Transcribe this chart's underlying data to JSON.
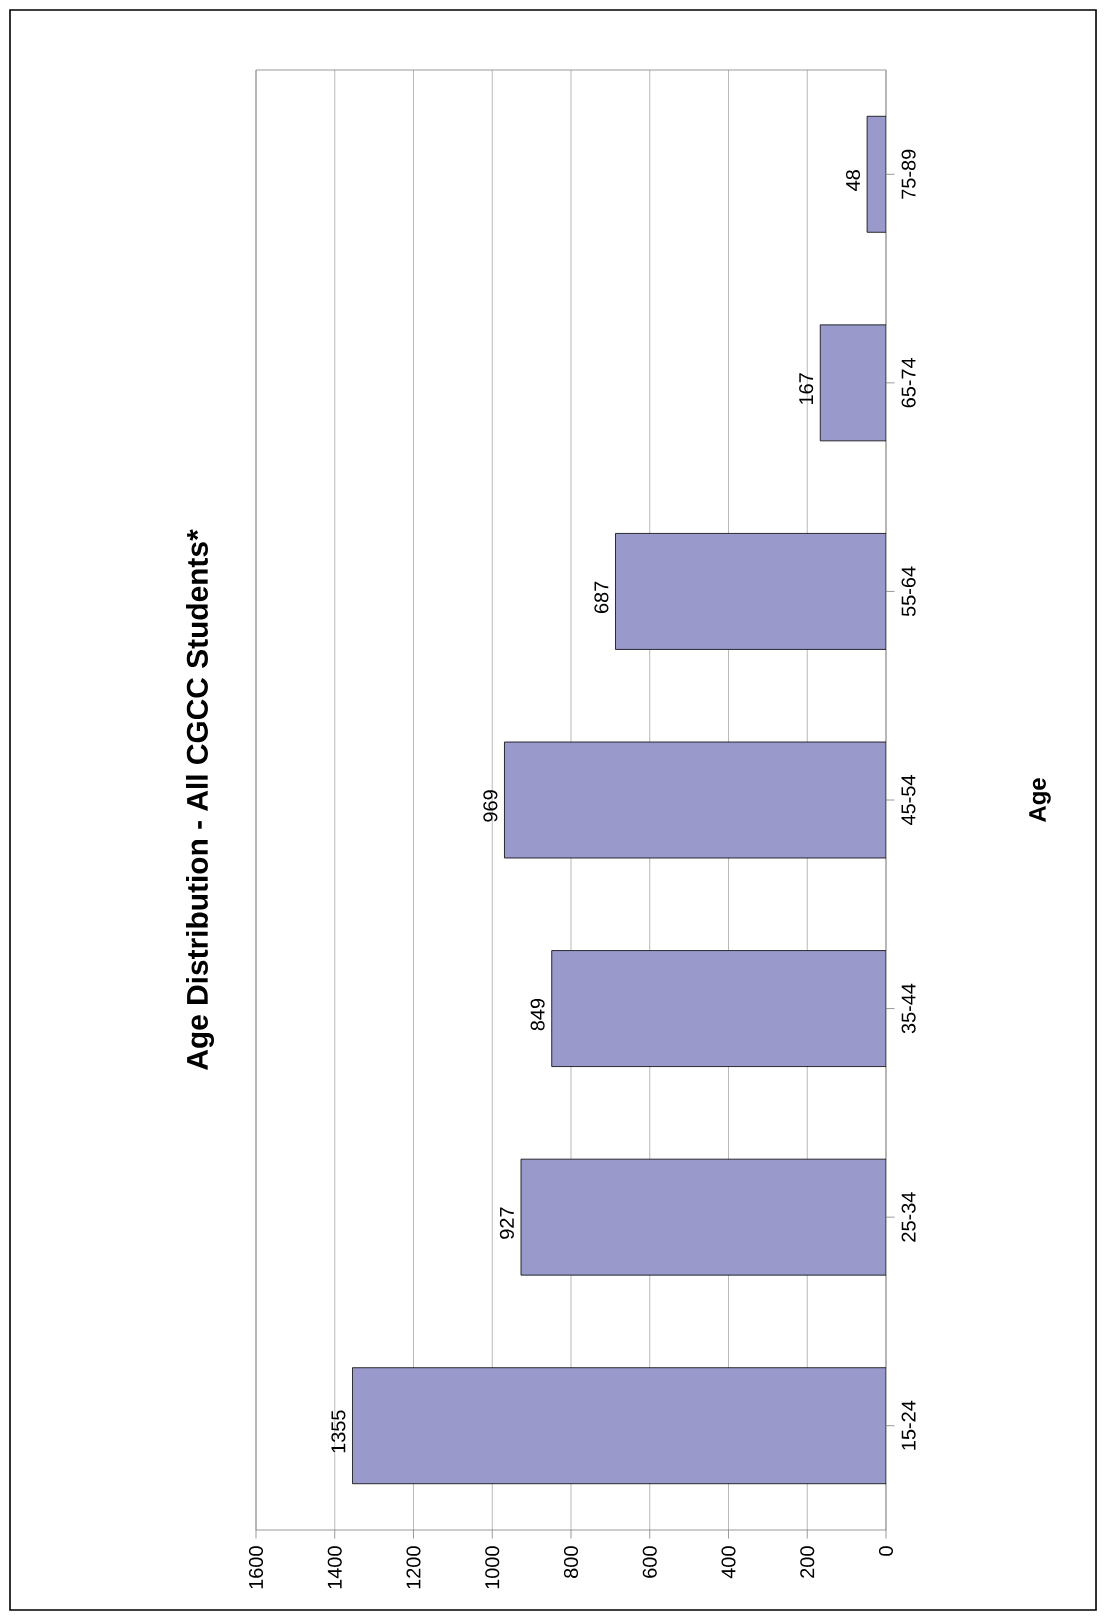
{
  "chart_data": {
    "type": "bar",
    "orientation": "horizontal",
    "title": "Age Distribution - All CGCC Students*",
    "ylabel": "Age",
    "categories": [
      "75-89",
      "65-74",
      "55-64",
      "45-54",
      "35-44",
      "25-34",
      "15-24"
    ],
    "values": [
      48,
      167,
      687,
      969,
      849,
      927,
      1355
    ],
    "color": "#9999cc",
    "xlim": [
      1600,
      0
    ],
    "xticks": [
      1600,
      1400,
      1200,
      1000,
      800,
      600,
      400,
      200,
      0
    ],
    "grid": "x",
    "data_labels": true
  }
}
